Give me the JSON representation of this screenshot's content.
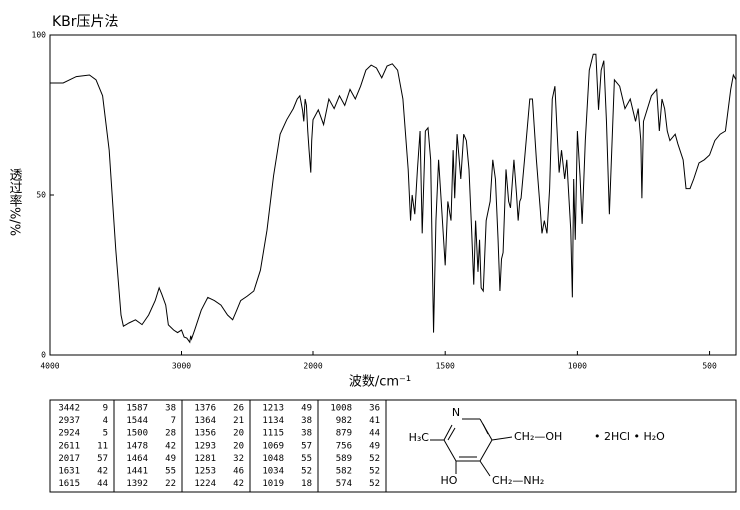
{
  "chart_data": {
    "type": "line",
    "title": "KBr压片法",
    "ylabel": "透过率%/%",
    "xlabel": "波数/cm⁻¹",
    "xlim": [
      4000,
      400
    ],
    "x_scale_break": 2000,
    "xticks": [
      4000,
      3000,
      2000,
      1500,
      1000,
      500
    ],
    "ylim": [
      0,
      100
    ],
    "yticks": [
      0,
      50,
      100
    ],
    "color": "#000000",
    "x": [
      4000,
      3900,
      3800,
      3700,
      3650,
      3600,
      3550,
      3500,
      3460,
      3442,
      3400,
      3350,
      3300,
      3250,
      3200,
      3170,
      3150,
      3120,
      3100,
      3060,
      3030,
      3000,
      2980,
      2960,
      2937,
      2930,
      2924,
      2900,
      2850,
      2800,
      2750,
      2700,
      2650,
      2611,
      2580,
      2550,
      2500,
      2450,
      2400,
      2350,
      2300,
      2250,
      2200,
      2150,
      2120,
      2100,
      2080,
      2070,
      2060,
      2050,
      2040,
      2030,
      2017,
      2010,
      2000,
      1980,
      1960,
      1940,
      1920,
      1900,
      1880,
      1860,
      1840,
      1820,
      1800,
      1780,
      1760,
      1740,
      1720,
      1700,
      1680,
      1660,
      1640,
      1631,
      1625,
      1615,
      1605,
      1595,
      1587,
      1575,
      1565,
      1555,
      1544,
      1535,
      1525,
      1515,
      1500,
      1490,
      1478,
      1470,
      1464,
      1455,
      1441,
      1430,
      1420,
      1410,
      1400,
      1392,
      1385,
      1376,
      1370,
      1364,
      1356,
      1345,
      1330,
      1320,
      1310,
      1300,
      1293,
      1287,
      1281,
      1270,
      1260,
      1253,
      1240,
      1230,
      1224,
      1218,
      1213,
      1200,
      1180,
      1170,
      1155,
      1140,
      1134,
      1125,
      1115,
      1105,
      1095,
      1085,
      1075,
      1069,
      1060,
      1048,
      1040,
      1034,
      1025,
      1019,
      1014,
      1008,
      1000,
      990,
      982,
      970,
      955,
      940,
      930,
      920,
      910,
      900,
      890,
      879,
      870,
      860,
      840,
      820,
      800,
      780,
      770,
      760,
      756,
      750,
      720,
      700,
      690,
      680,
      670,
      660,
      650,
      630,
      620,
      600,
      589,
      582,
      574,
      560,
      540,
      520,
      500,
      480,
      460,
      440,
      420,
      410,
      400
    ],
    "values": [
      85,
      85,
      87,
      87.5,
      86,
      81,
      64,
      33,
      12.5,
      9,
      10,
      11,
      9.5,
      12.5,
      17,
      21,
      19,
      15.6,
      9.4,
      7.8,
      7,
      7.8,
      5.6,
      5.3,
      4,
      6,
      5,
      7.8,
      14,
      18,
      17,
      15.6,
      12.5,
      11,
      14,
      17,
      18.4,
      20,
      26.5,
      39,
      56,
      69,
      73.5,
      77,
      80,
      81,
      76.6,
      73,
      80,
      78,
      70,
      64,
      57,
      67,
      73.5,
      76.6,
      72,
      80,
      77,
      81,
      78,
      83,
      80,
      84,
      89,
      90.6,
      89.7,
      86.6,
      90.3,
      91,
      89,
      80,
      58,
      42,
      50,
      44,
      58,
      70,
      38,
      70,
      71,
      61,
      7,
      42,
      61,
      48,
      28,
      48,
      42,
      64,
      49,
      69,
      55,
      69,
      67,
      58,
      39,
      22,
      42,
      26,
      36,
      21,
      20,
      42,
      48,
      61,
      55,
      36,
      20,
      30,
      32,
      58,
      48,
      46,
      61,
      50,
      42,
      48,
      49,
      61,
      80,
      80,
      61,
      45,
      38,
      42,
      38,
      52,
      80,
      84,
      67,
      57,
      64,
      55,
      61,
      52,
      39,
      18,
      55,
      36,
      70,
      56,
      41,
      67,
      89,
      94,
      94,
      76.6,
      89,
      92,
      73,
      44,
      64,
      86,
      84,
      77,
      80,
      73,
      77,
      67,
      49,
      73,
      81,
      83,
      70,
      80,
      77,
      70,
      67,
      69,
      66,
      61,
      52,
      52,
      52,
      55,
      60,
      61,
      62.5,
      67,
      69,
      70,
      83,
      87.5,
      86
    ]
  },
  "peak_table": [
    [
      3442,
      9
    ],
    [
      2937,
      4
    ],
    [
      2924,
      5
    ],
    [
      2611,
      11
    ],
    [
      2017,
      57
    ],
    [
      1631,
      42
    ],
    [
      1615,
      44
    ],
    [
      1587,
      38
    ],
    [
      1544,
      7
    ],
    [
      1500,
      28
    ],
    [
      1478,
      42
    ],
    [
      1464,
      49
    ],
    [
      1441,
      55
    ],
    [
      1392,
      22
    ],
    [
      1376,
      26
    ],
    [
      1364,
      21
    ],
    [
      1356,
      20
    ],
    [
      1293,
      20
    ],
    [
      1281,
      32
    ],
    [
      1253,
      46
    ],
    [
      1224,
      42
    ],
    [
      1213,
      49
    ],
    [
      1134,
      38
    ],
    [
      1115,
      38
    ],
    [
      1069,
      57
    ],
    [
      1048,
      55
    ],
    [
      1034,
      52
    ],
    [
      1019,
      18
    ],
    [
      1008,
      36
    ],
    [
      982,
      41
    ],
    [
      879,
      44
    ],
    [
      756,
      49
    ],
    [
      589,
      52
    ],
    [
      582,
      52
    ],
    [
      574,
      52
    ]
  ],
  "structure": {
    "ring_atom": "N",
    "methyl": "H₃C",
    "hydroxyl": "HO",
    "hydroxymethyl": "CH₂—OH",
    "aminomethyl": "CH₂—NH₂",
    "salt": "• 2HCl • H₂O"
  }
}
